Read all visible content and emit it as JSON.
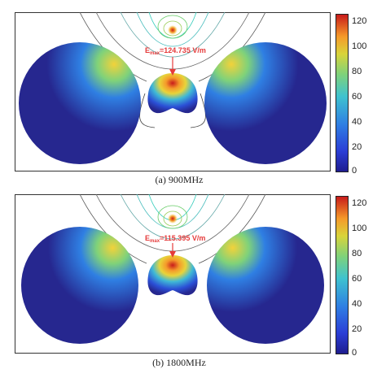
{
  "panels": [
    {
      "id": "a",
      "caption": "(a) 900MHz",
      "emax_prefix": "E",
      "emax_sub": "max",
      "emax_value": "=124.735 V/m"
    },
    {
      "id": "b",
      "caption": "(b) 1800MHz",
      "emax_prefix": "E",
      "emax_sub": "max",
      "emax_value": "=115.395 V/m"
    }
  ],
  "colorbar": {
    "ticks": [
      "120",
      "100",
      "80",
      "60",
      "40",
      "20",
      "0"
    ],
    "min": 0,
    "max": 125,
    "colors": [
      "#1f1d8f",
      "#2b3ed6",
      "#2f7fe3",
      "#3fc3cf",
      "#7fd27a",
      "#d9d43a",
      "#f59a2a",
      "#c81b1b"
    ]
  },
  "colors": {
    "field_low": "#26278f",
    "field_hot": "#f08a22",
    "contour": "#3a3a3a",
    "annotation": "#e53b3b"
  }
}
